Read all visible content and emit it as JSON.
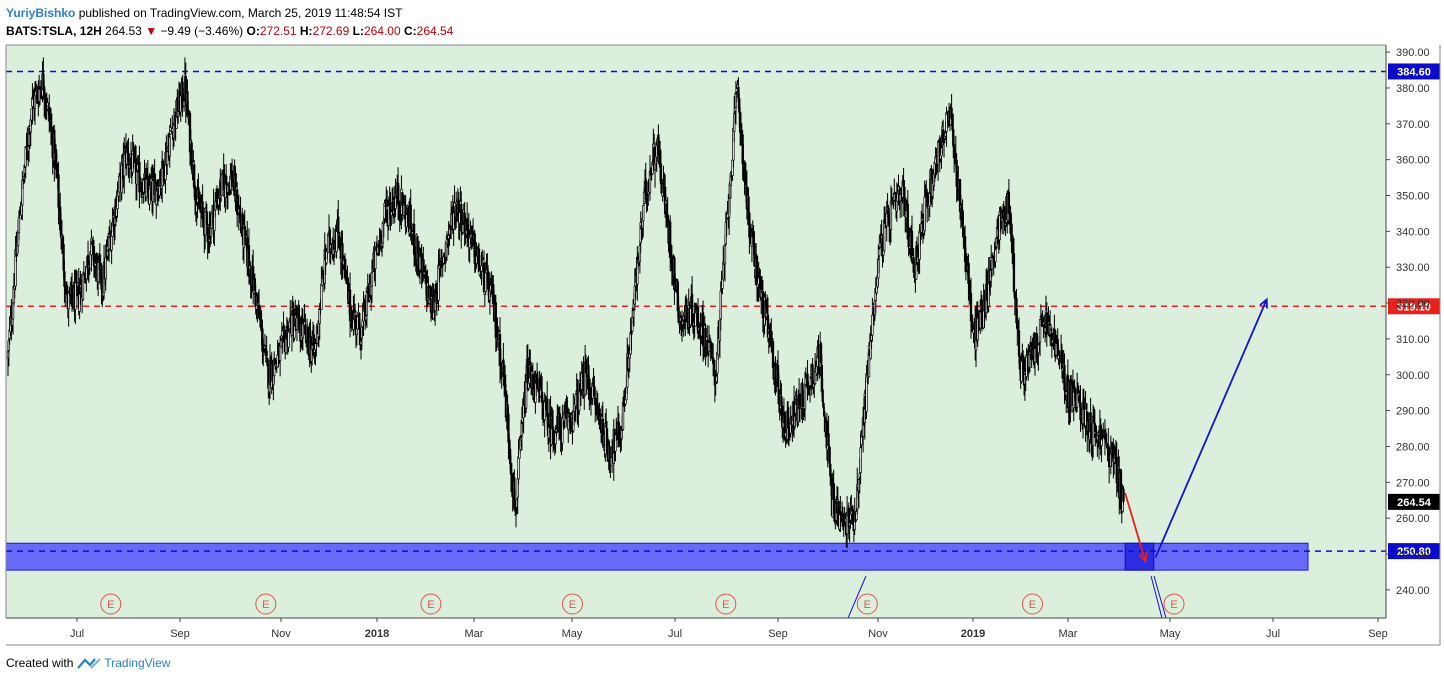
{
  "header": {
    "author": "YuriyBishko",
    "published": "published on TradingView.com, March 25, 2019 11:48:54 IST",
    "symbol": "BATS:TSLA, 12H",
    "last": "264.53",
    "change": "−9.49 (−3.46%)",
    "o_label": "O:",
    "o_value": "272.51",
    "h_label": "H:",
    "h_value": "272.69",
    "l_label": "L:",
    "l_value": "264.00",
    "c_label": "C:",
    "c_value": "264.54"
  },
  "footer": {
    "created_with": "Created with",
    "brand": "TradingView"
  },
  "colors": {
    "plot_bg": "#dcefdc",
    "candle": "#000000",
    "resistance": "#0b0bcc",
    "middle": "#e8211c",
    "zone_fill": "#4d4dff",
    "arrow_up": "#1414cc",
    "arrow_down": "#e8211c",
    "earnings": "#e0554b"
  },
  "chart_data": {
    "type": "candlestick",
    "symbol": "BATS:TSLA",
    "interval": "12H",
    "ylim": [
      236,
      394
    ],
    "y_ticks": [
      240,
      250,
      260,
      270,
      280,
      290,
      300,
      310,
      320,
      330,
      340,
      350,
      360,
      370,
      380,
      390
    ],
    "x_ticks": [
      {
        "label": "Jul",
        "bold": false
      },
      {
        "label": "Sep",
        "bold": false
      },
      {
        "label": "Nov",
        "bold": false
      },
      {
        "label": "2018",
        "bold": true
      },
      {
        "label": "Mar",
        "bold": false
      },
      {
        "label": "May",
        "bold": false
      },
      {
        "label": "Jul",
        "bold": false
      },
      {
        "label": "Sep",
        "bold": false
      },
      {
        "label": "Nov",
        "bold": false
      },
      {
        "label": "2019",
        "bold": true
      },
      {
        "label": "Mar",
        "bold": false
      },
      {
        "label": "May",
        "bold": false
      },
      {
        "label": "Jul",
        "bold": false
      },
      {
        "label": "Sep",
        "bold": false
      }
    ],
    "horizontal_lines": [
      {
        "value": 384.6,
        "label": "384.60",
        "style": "dashed",
        "color": "#0b0bcc"
      },
      {
        "value": 319.1,
        "label": "319.10",
        "style": "dashed",
        "color": "#e8211c"
      },
      {
        "value": 250.8,
        "label": "250.80",
        "style": "dashed",
        "color": "#0b0bcc"
      }
    ],
    "last_price_label": "264.54",
    "support_zone": [
      245.5,
      253.0
    ],
    "earnings_marker": "E",
    "earnings_count": 8,
    "path": [
      [
        "2017-06-01",
        305
      ],
      [
        "2017-06-08",
        345
      ],
      [
        "2017-06-15",
        375
      ],
      [
        "2017-06-22",
        382
      ],
      [
        "2017-06-29",
        360
      ],
      [
        "2017-07-06",
        320
      ],
      [
        "2017-07-13",
        322
      ],
      [
        "2017-07-20",
        335
      ],
      [
        "2017-07-27",
        325
      ],
      [
        "2017-08-03",
        345
      ],
      [
        "2017-08-10",
        362
      ],
      [
        "2017-08-17",
        355
      ],
      [
        "2017-08-24",
        350
      ],
      [
        "2017-08-31",
        355
      ],
      [
        "2017-09-07",
        370
      ],
      [
        "2017-09-14",
        380
      ],
      [
        "2017-09-21",
        348
      ],
      [
        "2017-09-28",
        340
      ],
      [
        "2017-10-05",
        352
      ],
      [
        "2017-10-12",
        355
      ],
      [
        "2017-10-19",
        338
      ],
      [
        "2017-10-26",
        322
      ],
      [
        "2017-11-02",
        300
      ],
      [
        "2017-11-09",
        305
      ],
      [
        "2017-11-16",
        315
      ],
      [
        "2017-11-23",
        312
      ],
      [
        "2017-11-30",
        306
      ],
      [
        "2017-12-07",
        335
      ],
      [
        "2017-12-14",
        340
      ],
      [
        "2017-12-21",
        318
      ],
      [
        "2017-12-28",
        312
      ],
      [
        "2018-01-04",
        330
      ],
      [
        "2018-01-11",
        345
      ],
      [
        "2018-01-18",
        350
      ],
      [
        "2018-01-25",
        343
      ],
      [
        "2018-02-01",
        330
      ],
      [
        "2018-02-08",
        318
      ],
      [
        "2018-02-15",
        335
      ],
      [
        "2018-02-22",
        348
      ],
      [
        "2018-03-01",
        340
      ],
      [
        "2018-03-08",
        330
      ],
      [
        "2018-03-15",
        322
      ],
      [
        "2018-03-22",
        300
      ],
      [
        "2018-03-29",
        262
      ],
      [
        "2018-04-05",
        300
      ],
      [
        "2018-04-12",
        295
      ],
      [
        "2018-04-19",
        285
      ],
      [
        "2018-04-26",
        285
      ],
      [
        "2018-05-03",
        290
      ],
      [
        "2018-05-10",
        300
      ],
      [
        "2018-05-17",
        290
      ],
      [
        "2018-05-24",
        278
      ],
      [
        "2018-05-31",
        285
      ],
      [
        "2018-06-07",
        318
      ],
      [
        "2018-06-14",
        350
      ],
      [
        "2018-06-21",
        365
      ],
      [
        "2018-06-28",
        340
      ],
      [
        "2018-07-05",
        315
      ],
      [
        "2018-07-12",
        318
      ],
      [
        "2018-07-19",
        312
      ],
      [
        "2018-07-26",
        300
      ],
      [
        "2018-08-02",
        345
      ],
      [
        "2018-08-08",
        380
      ],
      [
        "2018-08-15",
        340
      ],
      [
        "2018-08-22",
        322
      ],
      [
        "2018-08-29",
        305
      ],
      [
        "2018-09-05",
        285
      ],
      [
        "2018-09-12",
        290
      ],
      [
        "2018-09-19",
        298
      ],
      [
        "2018-09-26",
        305
      ],
      [
        "2018-10-03",
        265
      ],
      [
        "2018-10-10",
        258
      ],
      [
        "2018-10-17",
        262
      ],
      [
        "2018-10-24",
        300
      ],
      [
        "2018-10-31",
        335
      ],
      [
        "2018-11-07",
        345
      ],
      [
        "2018-11-14",
        350
      ],
      [
        "2018-11-21",
        330
      ],
      [
        "2018-11-28",
        348
      ],
      [
        "2018-12-05",
        362
      ],
      [
        "2018-12-12",
        372
      ],
      [
        "2018-12-19",
        345
      ],
      [
        "2018-12-26",
        310
      ],
      [
        "2019-01-02",
        320
      ],
      [
        "2019-01-09",
        340
      ],
      [
        "2019-01-16",
        348
      ],
      [
        "2019-01-23",
        300
      ],
      [
        "2019-01-30",
        305
      ],
      [
        "2019-02-06",
        315
      ],
      [
        "2019-02-13",
        308
      ],
      [
        "2019-02-20",
        295
      ],
      [
        "2019-02-27",
        292
      ],
      [
        "2019-03-06",
        285
      ],
      [
        "2019-03-13",
        282
      ],
      [
        "2019-03-20",
        275
      ],
      [
        "2019-03-25",
        264.5
      ]
    ],
    "projection": {
      "down_arrow": {
        "from": [
          "2019-03-26",
          267
        ],
        "to": [
          "2019-04-07",
          248
        ]
      },
      "up_arrow": {
        "from": [
          "2019-04-13",
          249
        ],
        "to": [
          "2019-06-18",
          321
        ]
      }
    }
  }
}
